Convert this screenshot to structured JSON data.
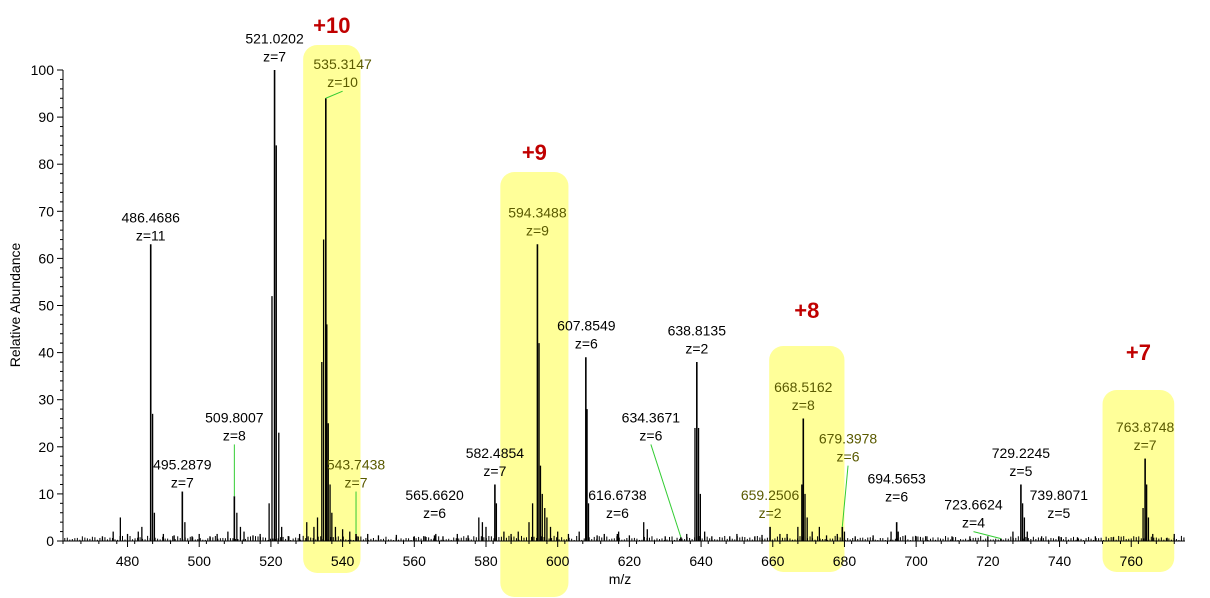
{
  "chart_data": {
    "type": "line",
    "xlabel": "m/z",
    "ylabel": "Relative Abundance",
    "xlim": [
      462,
      775
    ],
    "ylim": [
      0,
      100
    ],
    "x_ticks": [
      480,
      500,
      520,
      540,
      560,
      580,
      600,
      620,
      640,
      660,
      680,
      700,
      720,
      740,
      760
    ],
    "y_ticks": [
      0,
      10,
      20,
      30,
      40,
      50,
      60,
      70,
      80,
      90,
      100
    ],
    "grid": false,
    "series_color": "#000000",
    "highlight_color": "#ffff99",
    "label_color": "#c00000",
    "highlights": [
      {
        "label": "+10",
        "x_range": [
          529,
          545
        ]
      },
      {
        "label": "+9",
        "x_range": [
          584,
          603
        ]
      },
      {
        "label": "+8",
        "x_range": [
          659,
          680
        ]
      },
      {
        "label": "+7",
        "x_range": [
          752,
          772
        ]
      }
    ],
    "peaks": [
      {
        "mz": 486.4686,
        "z": "z=11",
        "intensity": 63,
        "mz_label": "486.4686",
        "label_y": 63,
        "label_x": 486.4686
      },
      {
        "mz": 495.2879,
        "z": "z=7",
        "intensity": 10.5,
        "mz_label": "495.2879",
        "label_y": 10.5,
        "label_x": 495.2879
      },
      {
        "mz": 509.8007,
        "z": "z=8",
        "intensity": 9.5,
        "mz_label": "509.8007",
        "label_y": 20.5,
        "label_x": 509.8007
      },
      {
        "mz": 521.0202,
        "z": "z=7",
        "intensity": 100,
        "mz_label": "521.0202",
        "label_y": 101,
        "label_x": 521.0202
      },
      {
        "mz": 535.3147,
        "z": "z=10",
        "intensity": 94,
        "mz_label": "535.3147",
        "label_y": 95.5,
        "label_x": 540
      },
      {
        "mz": 543.7438,
        "z": "z=7",
        "intensity": 1.5,
        "mz_label": "543.7438",
        "label_y": 10.5,
        "label_x": 543.7438
      },
      {
        "mz": 565.662,
        "z": "z=6",
        "intensity": 1.2,
        "mz_label": "565.6620",
        "label_y": 4,
        "label_x": 565.662
      },
      {
        "mz": 582.4854,
        "z": "z=7",
        "intensity": 12,
        "mz_label": "582.4854",
        "label_y": 13,
        "label_x": 582.4854
      },
      {
        "mz": 594.3488,
        "z": "z=9",
        "intensity": 63,
        "mz_label": "594.3488",
        "label_y": 64,
        "label_x": 594.3488
      },
      {
        "mz": 607.8549,
        "z": "z=6",
        "intensity": 39,
        "mz_label": "607.8549",
        "label_y": 40,
        "label_x": 608
      },
      {
        "mz": 616.6738,
        "z": "z=6",
        "intensity": 1.5,
        "mz_label": "616.6738",
        "label_y": 4,
        "label_x": 616.6738
      },
      {
        "mz": 634.3671,
        "z": "z=6",
        "intensity": 0.8,
        "mz_label": "634.3671",
        "label_y": 20.5,
        "label_x": 626
      },
      {
        "mz": 638.8135,
        "z": "z=2",
        "intensity": 38,
        "mz_label": "638.8135",
        "label_y": 39,
        "label_x": 638.8135
      },
      {
        "mz": 659.2506,
        "z": "z=2",
        "intensity": 3,
        "mz_label": "659.2506",
        "label_y": 4,
        "label_x": 659.2506
      },
      {
        "mz": 668.5162,
        "z": "z=8",
        "intensity": 26,
        "mz_label": "668.5162",
        "label_y": 27,
        "label_x": 668.5162
      },
      {
        "mz": 679.3978,
        "z": "z=6",
        "intensity": 3,
        "mz_label": "679.3978",
        "label_y": 16,
        "label_x": 681
      },
      {
        "mz": 694.5653,
        "z": "z=6",
        "intensity": 4,
        "mz_label": "694.5653",
        "label_y": 7.5,
        "label_x": 694.5653
      },
      {
        "mz": 723.6624,
        "z": "z=4",
        "intensity": 0.5,
        "mz_label": "723.6624",
        "label_y": 2,
        "label_x": 716
      },
      {
        "mz": 729.2245,
        "z": "z=5",
        "intensity": 12,
        "mz_label": "729.2245",
        "label_y": 13,
        "label_x": 729.2245
      },
      {
        "mz": 739.8071,
        "z": "z=5",
        "intensity": 1,
        "mz_label": "739.8071",
        "label_y": 4,
        "label_x": 739.8071
      },
      {
        "mz": 763.8748,
        "z": "z=7",
        "intensity": 17.5,
        "mz_label": "763.8748",
        "label_y": 18.5,
        "label_x": 763.8748
      }
    ],
    "minor_peaks": [
      [
        473,
        1
      ],
      [
        476,
        2
      ],
      [
        478,
        5
      ],
      [
        480,
        1.5
      ],
      [
        483,
        2
      ],
      [
        484,
        3
      ],
      [
        487,
        27
      ],
      [
        487.5,
        6
      ],
      [
        490,
        1.5
      ],
      [
        493,
        1.2
      ],
      [
        496,
        4
      ],
      [
        498,
        1
      ],
      [
        500,
        1.5
      ],
      [
        503,
        1
      ],
      [
        505,
        1.5
      ],
      [
        508,
        2
      ],
      [
        510.5,
        6
      ],
      [
        511.5,
        3
      ],
      [
        512.5,
        2
      ],
      [
        515,
        1.2
      ],
      [
        517,
        1.5
      ],
      [
        519.5,
        8
      ],
      [
        520.3,
        52
      ],
      [
        521.5,
        84
      ],
      [
        522.2,
        23
      ],
      [
        523,
        3
      ],
      [
        525,
        1
      ],
      [
        528,
        1.5
      ],
      [
        530,
        4
      ],
      [
        532,
        3
      ],
      [
        533,
        5
      ],
      [
        534.2,
        38
      ],
      [
        534.7,
        64
      ],
      [
        535.6,
        46
      ],
      [
        536,
        25
      ],
      [
        536.5,
        12
      ],
      [
        537,
        6
      ],
      [
        538,
        3
      ],
      [
        540,
        2.5
      ],
      [
        542,
        2
      ],
      [
        544,
        1
      ],
      [
        547,
        1.5
      ],
      [
        550,
        1.2
      ],
      [
        555,
        1.3
      ],
      [
        560,
        1
      ],
      [
        563,
        1
      ],
      [
        566,
        1.5
      ],
      [
        568,
        1
      ],
      [
        572,
        1.5
      ],
      [
        575,
        1.2
      ],
      [
        578,
        5
      ],
      [
        579,
        4
      ],
      [
        580,
        3
      ],
      [
        582.9,
        8
      ],
      [
        585,
        2
      ],
      [
        587,
        1.5
      ],
      [
        589,
        2
      ],
      [
        592,
        4
      ],
      [
        593,
        8
      ],
      [
        594.8,
        42
      ],
      [
        595.2,
        16
      ],
      [
        595.7,
        10
      ],
      [
        596.4,
        7
      ],
      [
        597,
        5
      ],
      [
        598,
        3
      ],
      [
        600,
        2
      ],
      [
        603,
        1.5
      ],
      [
        606,
        2
      ],
      [
        608.2,
        28
      ],
      [
        608.6,
        8
      ],
      [
        611,
        1.2
      ],
      [
        613,
        1.5
      ],
      [
        617,
        2
      ],
      [
        620,
        1.2
      ],
      [
        624,
        4
      ],
      [
        625,
        2.5
      ],
      [
        630,
        1
      ],
      [
        636,
        1.5
      ],
      [
        638.3,
        24
      ],
      [
        639.3,
        24
      ],
      [
        639.8,
        10
      ],
      [
        641,
        2
      ],
      [
        643,
        1
      ],
      [
        648,
        1
      ],
      [
        650,
        1.5
      ],
      [
        655,
        1
      ],
      [
        657,
        1.3
      ],
      [
        662,
        1.5
      ],
      [
        664,
        1.5
      ],
      [
        667,
        3
      ],
      [
        668.1,
        12
      ],
      [
        669,
        10
      ],
      [
        669.6,
        5
      ],
      [
        671,
        2
      ],
      [
        673,
        3
      ],
      [
        675,
        1.2
      ],
      [
        678,
        1.5
      ],
      [
        680,
        2
      ],
      [
        683,
        1
      ],
      [
        688,
        1.2
      ],
      [
        693,
        2
      ],
      [
        695,
        2
      ],
      [
        697,
        1.2
      ],
      [
        700,
        1
      ],
      [
        703,
        1
      ],
      [
        710,
        1
      ],
      [
        715,
        1
      ],
      [
        720,
        1
      ],
      [
        727,
        2
      ],
      [
        729.7,
        8
      ],
      [
        730.2,
        5
      ],
      [
        731,
        2
      ],
      [
        735,
        1
      ],
      [
        740.5,
        0.8
      ],
      [
        745,
        0.8
      ],
      [
        750,
        1
      ],
      [
        755,
        0.8
      ],
      [
        763.3,
        7
      ],
      [
        764.3,
        12
      ],
      [
        764.8,
        5
      ],
      [
        766,
        1.5
      ],
      [
        770,
        0.7
      ],
      [
        772,
        1.5
      ]
    ]
  }
}
